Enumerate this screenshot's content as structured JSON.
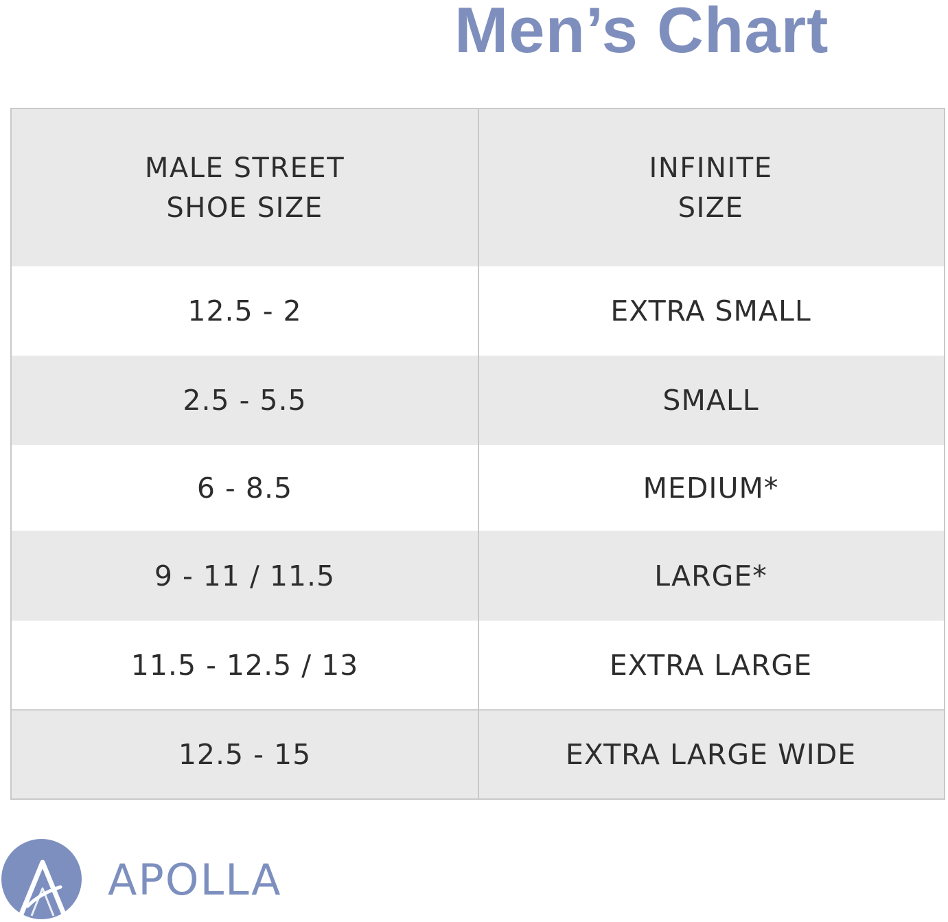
{
  "title": "Men’s Chart",
  "table": {
    "headers": [
      [
        "MALE STREET",
        "SHOE SIZE"
      ],
      [
        "INFINITE",
        "SIZE"
      ]
    ],
    "rows": [
      {
        "shoe_size": "12.5 - 2",
        "infinite_size": "EXTRA SMALL"
      },
      {
        "shoe_size": "2.5 - 5.5",
        "infinite_size": "SMALL"
      },
      {
        "shoe_size": "6 - 8.5",
        "infinite_size": "MEDIUM*"
      },
      {
        "shoe_size": "9 - 11 / 11.5",
        "infinite_size": "LARGE*"
      },
      {
        "shoe_size": "11.5 - 12.5 / 13",
        "infinite_size": "EXTRA LARGE"
      },
      {
        "shoe_size": "12.5 - 15",
        "infinite_size": "EXTRA LARGE WIDE"
      }
    ]
  },
  "brand": {
    "name": "APOLLA",
    "logo_letter": "A",
    "color": "#7d8fbf"
  },
  "colors": {
    "title": "#7f8fbd",
    "row_shade": "#e9e9e9",
    "text": "#2d2d2d"
  }
}
